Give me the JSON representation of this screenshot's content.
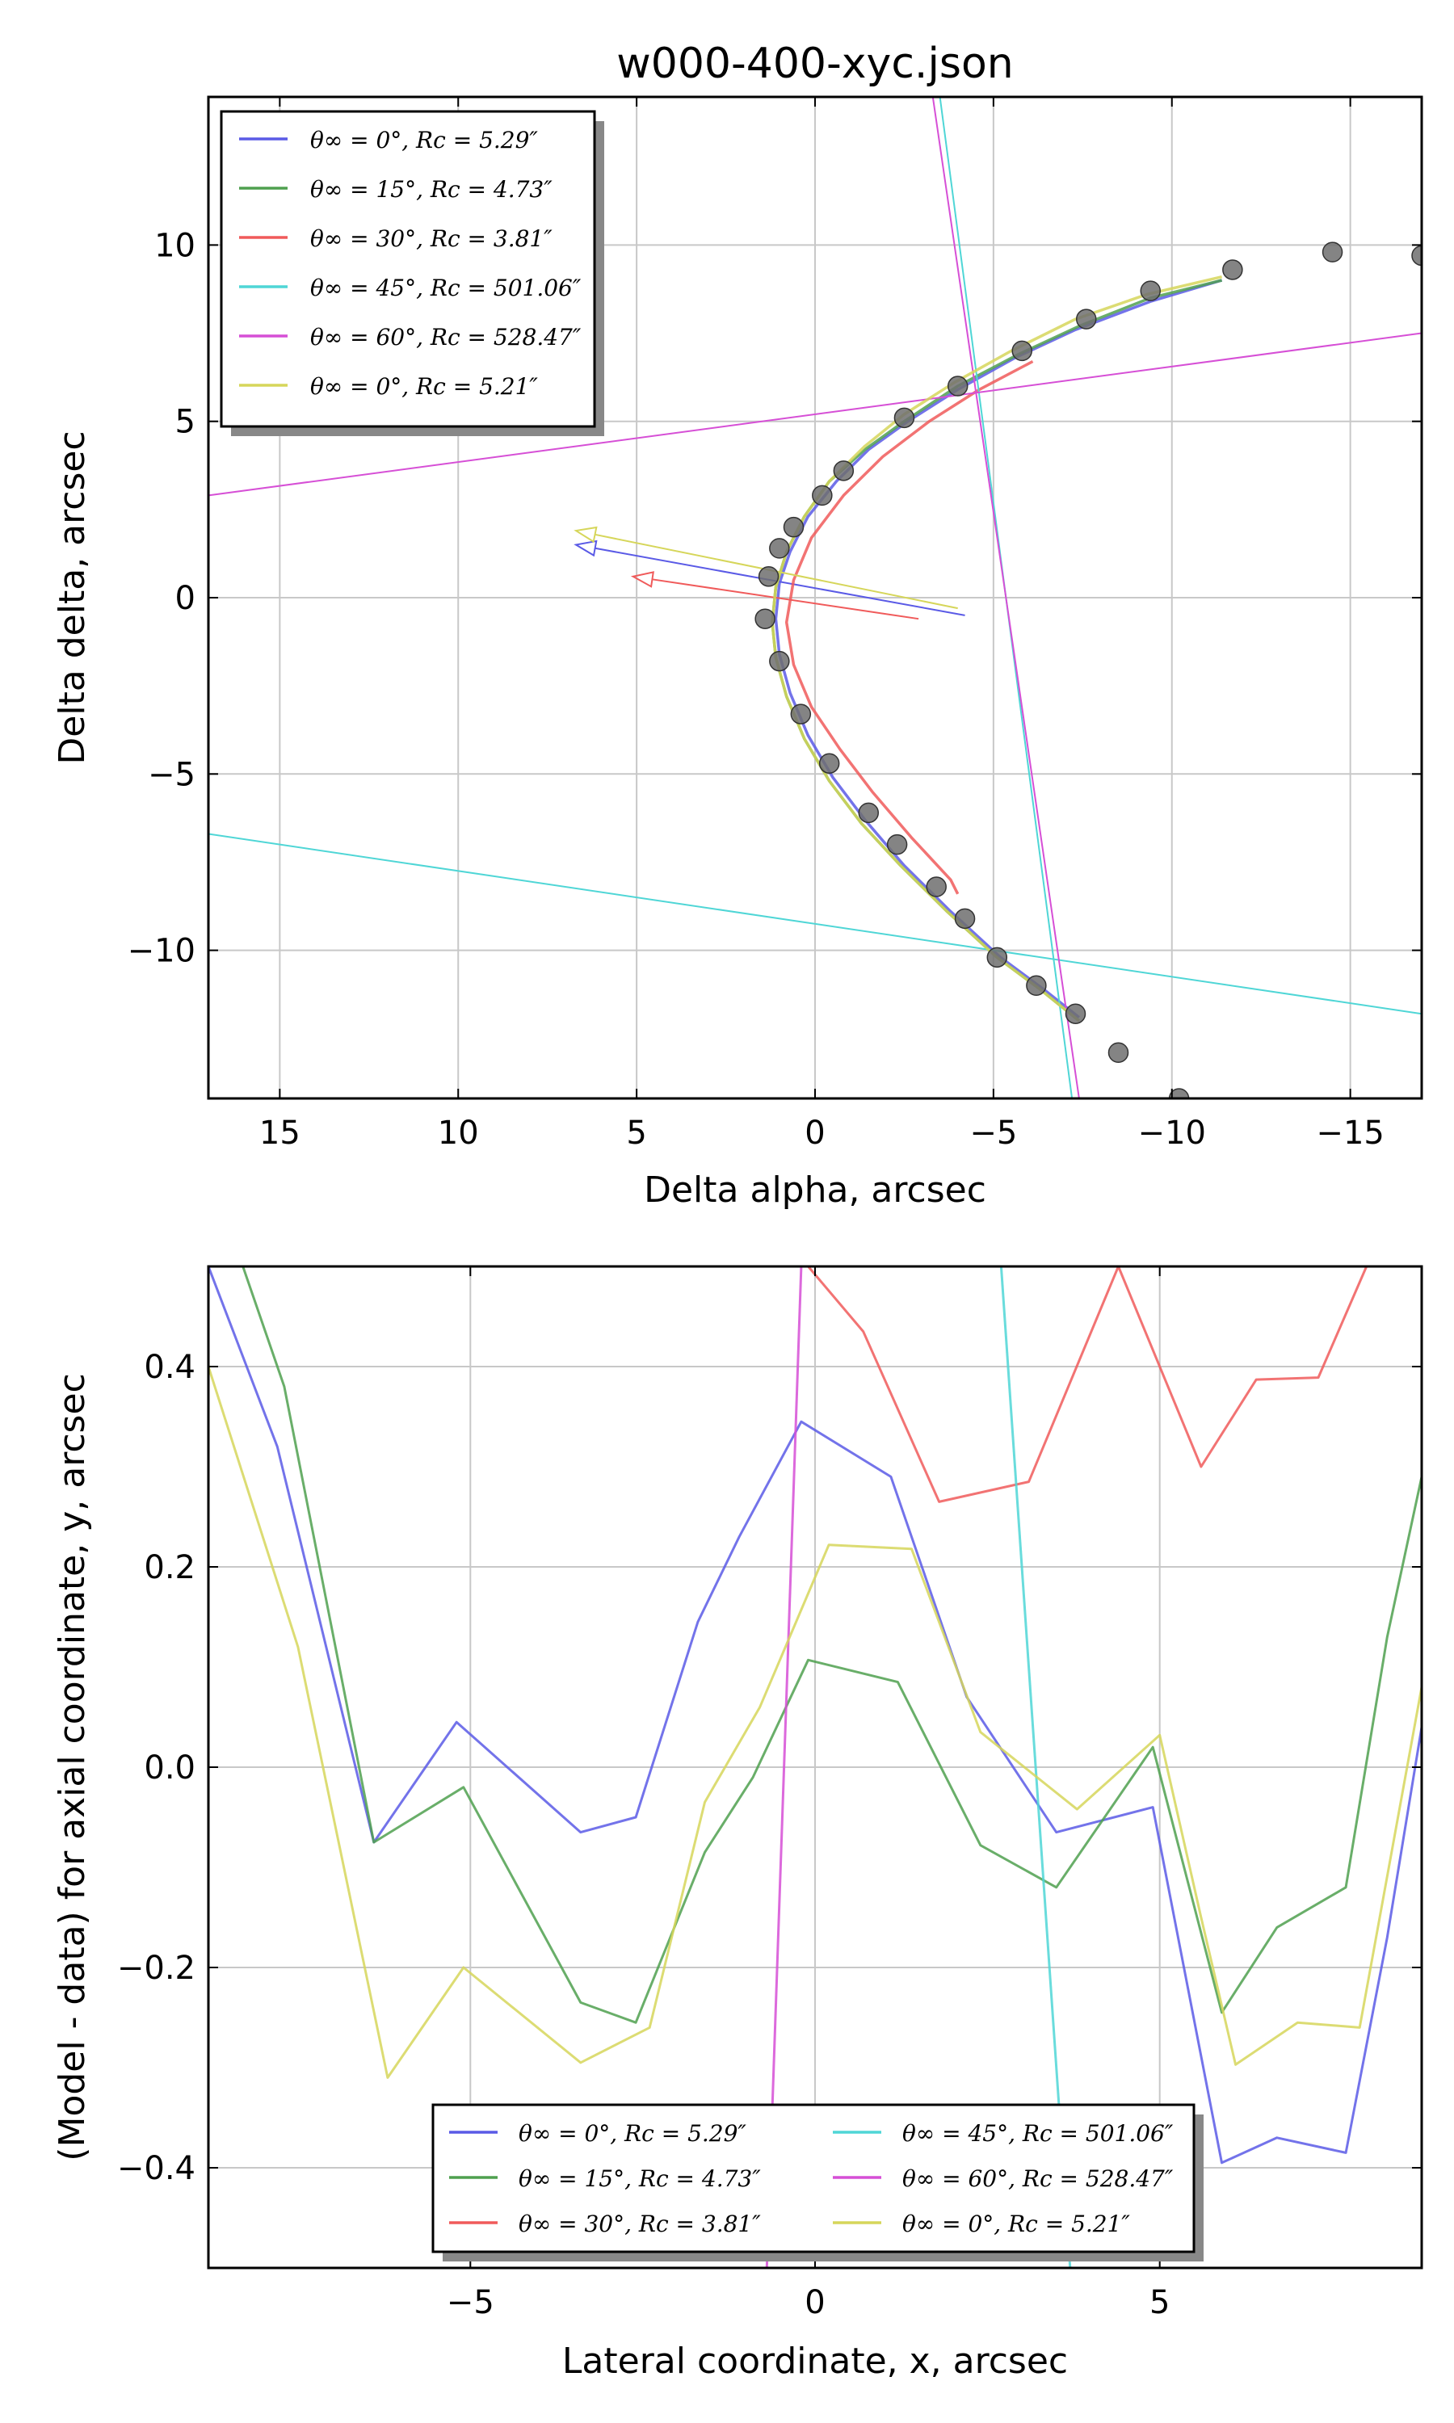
{
  "colors": {
    "blue": "#5a5ae6",
    "green": "#4fa04f",
    "red": "#f05a5a",
    "cyan": "#4fd6d6",
    "magenta": "#d64fd6",
    "yellow": "#d6d65a",
    "points": "#6e6e6e"
  },
  "series_labels": [
    "θ∞ = 0°, Rc = 5.29″",
    "θ∞ = 15°, Rc = 4.73″",
    "θ∞ = 30°, Rc = 3.81″",
    "θ∞ = 45°, Rc = 501.06″",
    "θ∞ = 60°, Rc = 528.47″",
    "θ∞ = 0°, Rc = 5.21″"
  ],
  "chart_data": [
    {
      "type": "scatter",
      "title": "w000-400-xyc.json",
      "xlabel": "Delta alpha, arcsec",
      "ylabel": "Delta delta, arcsec",
      "xlim": [
        17,
        -17
      ],
      "ylim": [
        -14.2,
        14.2
      ],
      "xticks": [
        15,
        10,
        5,
        0,
        -5,
        -10,
        -15
      ],
      "yticks": [
        -10,
        -5,
        0,
        5,
        10
      ],
      "xtick_labels": [
        "15",
        "10",
        "5",
        "0",
        "−5",
        "−10",
        "−15"
      ],
      "ytick_labels": [
        "−10",
        "−5",
        "0",
        "5",
        "10"
      ],
      "grid": true,
      "legend_position": "top-left",
      "points": [
        [
          -17,
          9.7
        ],
        [
          -14.5,
          9.8
        ],
        [
          -11.7,
          9.3
        ],
        [
          -9.4,
          8.7
        ],
        [
          -7.6,
          7.9
        ],
        [
          -5.8,
          7.0
        ],
        [
          -4.0,
          6.0
        ],
        [
          -2.5,
          5.1
        ],
        [
          -0.8,
          3.6
        ],
        [
          -0.2,
          2.9
        ],
        [
          0.6,
          2.0
        ],
        [
          1.0,
          1.4
        ],
        [
          1.3,
          0.6
        ],
        [
          1.4,
          -0.6
        ],
        [
          1.0,
          -1.8
        ],
        [
          0.4,
          -3.3
        ],
        [
          -0.4,
          -4.7
        ],
        [
          -1.5,
          -6.1
        ],
        [
          -2.3,
          -7.0
        ],
        [
          -3.4,
          -8.2
        ],
        [
          -4.2,
          -9.1
        ],
        [
          -5.1,
          -10.2
        ],
        [
          -6.2,
          -11.0
        ],
        [
          -7.3,
          -11.8
        ],
        [
          -8.5,
          -12.9
        ],
        [
          -10.2,
          -14.2
        ]
      ],
      "series": [
        {
          "color_key": "blue",
          "curve": [
            [
              -11.4,
              9.0
            ],
            [
              -9.4,
              8.4
            ],
            [
              -7.3,
              7.6
            ],
            [
              -5.6,
              6.8
            ],
            [
              -4.0,
              5.9
            ],
            [
              -2.6,
              5.0
            ],
            [
              -1.5,
              4.2
            ],
            [
              -0.6,
              3.3
            ],
            [
              0.2,
              2.3
            ],
            [
              0.7,
              1.3
            ],
            [
              1.0,
              0.4
            ],
            [
              1.1,
              -0.6
            ],
            [
              1.0,
              -1.6
            ],
            [
              0.7,
              -2.7
            ],
            [
              0.2,
              -3.9
            ],
            [
              -0.5,
              -5.1
            ],
            [
              -1.4,
              -6.3
            ],
            [
              -2.5,
              -7.6
            ],
            [
              -3.8,
              -8.9
            ],
            [
              -5.2,
              -10.2
            ],
            [
              -6.4,
              -11.1
            ],
            [
              -7.4,
              -11.9
            ]
          ],
          "arrow_from": [
            -4.2,
            -0.5
          ],
          "arrow_to": [
            6.7,
            1.5
          ]
        },
        {
          "color_key": "green",
          "curve": [
            [
              -11.4,
              9.0
            ],
            [
              -9.4,
              8.5
            ],
            [
              -7.4,
              7.7
            ],
            [
              -5.7,
              6.9
            ],
            [
              -4.0,
              6.0
            ],
            [
              -2.5,
              5.0
            ],
            [
              -1.4,
              4.2
            ],
            [
              -0.4,
              3.3
            ],
            [
              0.3,
              2.3
            ],
            [
              0.8,
              1.3
            ],
            [
              1.1,
              0.3
            ],
            [
              1.2,
              -0.7
            ],
            [
              1.1,
              -1.7
            ],
            [
              0.8,
              -2.8
            ],
            [
              0.3,
              -4.0
            ],
            [
              -0.4,
              -5.2
            ],
            [
              -1.3,
              -6.4
            ],
            [
              -2.4,
              -7.6
            ],
            [
              -3.7,
              -8.9
            ],
            [
              -5.1,
              -10.2
            ],
            [
              -6.3,
              -11.1
            ],
            [
              -7.4,
              -12.0
            ]
          ]
        },
        {
          "color_key": "red",
          "curve": [
            [
              -6.1,
              6.7
            ],
            [
              -4.6,
              5.9
            ],
            [
              -3.2,
              5.0
            ],
            [
              -1.9,
              4.0
            ],
            [
              -0.8,
              2.9
            ],
            [
              0.1,
              1.7
            ],
            [
              0.6,
              0.5
            ],
            [
              0.8,
              -0.7
            ],
            [
              0.6,
              -1.9
            ],
            [
              0.1,
              -3.1
            ],
            [
              -0.7,
              -4.3
            ],
            [
              -1.6,
              -5.5
            ],
            [
              -2.7,
              -6.8
            ],
            [
              -3.8,
              -8.0
            ],
            [
              -4.0,
              -8.4
            ]
          ],
          "arrow_from": [
            -2.9,
            -0.6
          ],
          "arrow_to": [
            5.1,
            0.6
          ]
        },
        {
          "color_key": "cyan",
          "line": [
            [
              -3.5,
              14.2
            ],
            [
              -7.2,
              -14.2
            ]
          ],
          "line2": [
            [
              17,
              -6.7
            ],
            [
              -17,
              -11.8
            ]
          ]
        },
        {
          "color_key": "magenta",
          "line": [
            [
              -3.3,
              14.2
            ],
            [
              -7.4,
              -14.2
            ]
          ],
          "line2": [
            [
              -17,
              7.5
            ],
            [
              17,
              2.9
            ]
          ]
        },
        {
          "color_key": "yellow",
          "curve": [
            [
              -11.4,
              9.1
            ],
            [
              -9.3,
              8.6
            ],
            [
              -7.3,
              7.9
            ],
            [
              -5.5,
              7.0
            ],
            [
              -3.9,
              6.1
            ],
            [
              -2.5,
              5.2
            ],
            [
              -1.4,
              4.3
            ],
            [
              -0.4,
              3.3
            ],
            [
              0.3,
              2.3
            ],
            [
              0.8,
              1.3
            ],
            [
              1.1,
              0.3
            ],
            [
              1.2,
              -0.7
            ],
            [
              1.1,
              -1.7
            ],
            [
              0.8,
              -2.8
            ],
            [
              0.3,
              -4.0
            ],
            [
              -0.4,
              -5.2
            ],
            [
              -1.3,
              -6.4
            ],
            [
              -2.4,
              -7.6
            ],
            [
              -3.7,
              -8.9
            ],
            [
              -5.1,
              -10.2
            ],
            [
              -6.3,
              -11.1
            ],
            [
              -7.4,
              -12.0
            ]
          ],
          "arrow_from": [
            -4.0,
            -0.3
          ],
          "arrow_to": [
            6.7,
            1.9
          ]
        }
      ]
    },
    {
      "type": "line",
      "title": "",
      "xlabel": "Lateral coordinate, x, arcsec",
      "ylabel": "(Model - data) for axial coordinate, y, arcsec",
      "xlim": [
        -8.8,
        8.8
      ],
      "ylim": [
        -0.5,
        0.5
      ],
      "xticks": [
        -5,
        0,
        5
      ],
      "yticks": [
        -0.4,
        -0.2,
        0.0,
        0.2,
        0.4
      ],
      "xtick_labels": [
        "−5",
        "0",
        "5"
      ],
      "ytick_labels": [
        "−0.4",
        "−0.2",
        "0.0",
        "0.2",
        "0.4"
      ],
      "grid": true,
      "legend_position": "lower-center",
      "series": [
        {
          "color_key": "blue",
          "x": [
            -8.8,
            -7.8,
            -6.4,
            -5.2,
            -3.4,
            -2.6,
            -1.7,
            -1.1,
            -0.2,
            1.1,
            2.2,
            3.5,
            4.9,
            5.9,
            6.7,
            7.7,
            8.3,
            8.8
          ],
          "y": [
            0.5,
            0.32,
            -0.075,
            0.045,
            -0.065,
            -0.05,
            0.145,
            0.23,
            0.345,
            0.29,
            0.07,
            -0.065,
            -0.04,
            -0.395,
            -0.37,
            -0.385,
            -0.17,
            0.04
          ]
        },
        {
          "color_key": "green",
          "x": [
            -8.3,
            -7.7,
            -6.4,
            -5.1,
            -3.4,
            -2.6,
            -1.6,
            -0.9,
            -0.1,
            1.2,
            2.4,
            3.5,
            4.9,
            5.9,
            6.7,
            7.7,
            8.3,
            8.8
          ],
          "y": [
            0.5,
            0.38,
            -0.075,
            -0.02,
            -0.235,
            -0.255,
            -0.085,
            -0.01,
            0.107,
            0.085,
            -0.078,
            -0.12,
            0.02,
            -0.245,
            -0.16,
            -0.12,
            0.13,
            0.29
          ]
        },
        {
          "color_key": "red",
          "x": [
            -0.1,
            0.7,
            1.8,
            3.1,
            4.4,
            5.6,
            6.4,
            7.3,
            8.0
          ],
          "y": [
            0.5,
            0.435,
            0.265,
            0.285,
            0.5,
            0.3,
            0.387,
            0.389,
            0.5
          ]
        },
        {
          "color_key": "cyan",
          "x": [
            2.7,
            3.7
          ],
          "y": [
            0.5,
            -0.5
          ]
        },
        {
          "color_key": "magenta",
          "x": [
            -0.7,
            -0.2
          ],
          "y": [
            -0.5,
            0.5
          ]
        },
        {
          "color_key": "yellow",
          "x": [
            -8.8,
            -7.5,
            -6.2,
            -5.1,
            -3.4,
            -2.4,
            -1.6,
            -0.8,
            0.2,
            1.4,
            2.4,
            3.8,
            5.0,
            5.6,
            6.1,
            7.0,
            7.9,
            8.8
          ],
          "y": [
            0.4,
            0.12,
            -0.31,
            -0.2,
            -0.295,
            -0.26,
            -0.035,
            0.06,
            0.222,
            0.218,
            0.035,
            -0.042,
            0.032,
            -0.15,
            -0.297,
            -0.255,
            -0.26,
            0.08
          ]
        }
      ]
    }
  ]
}
